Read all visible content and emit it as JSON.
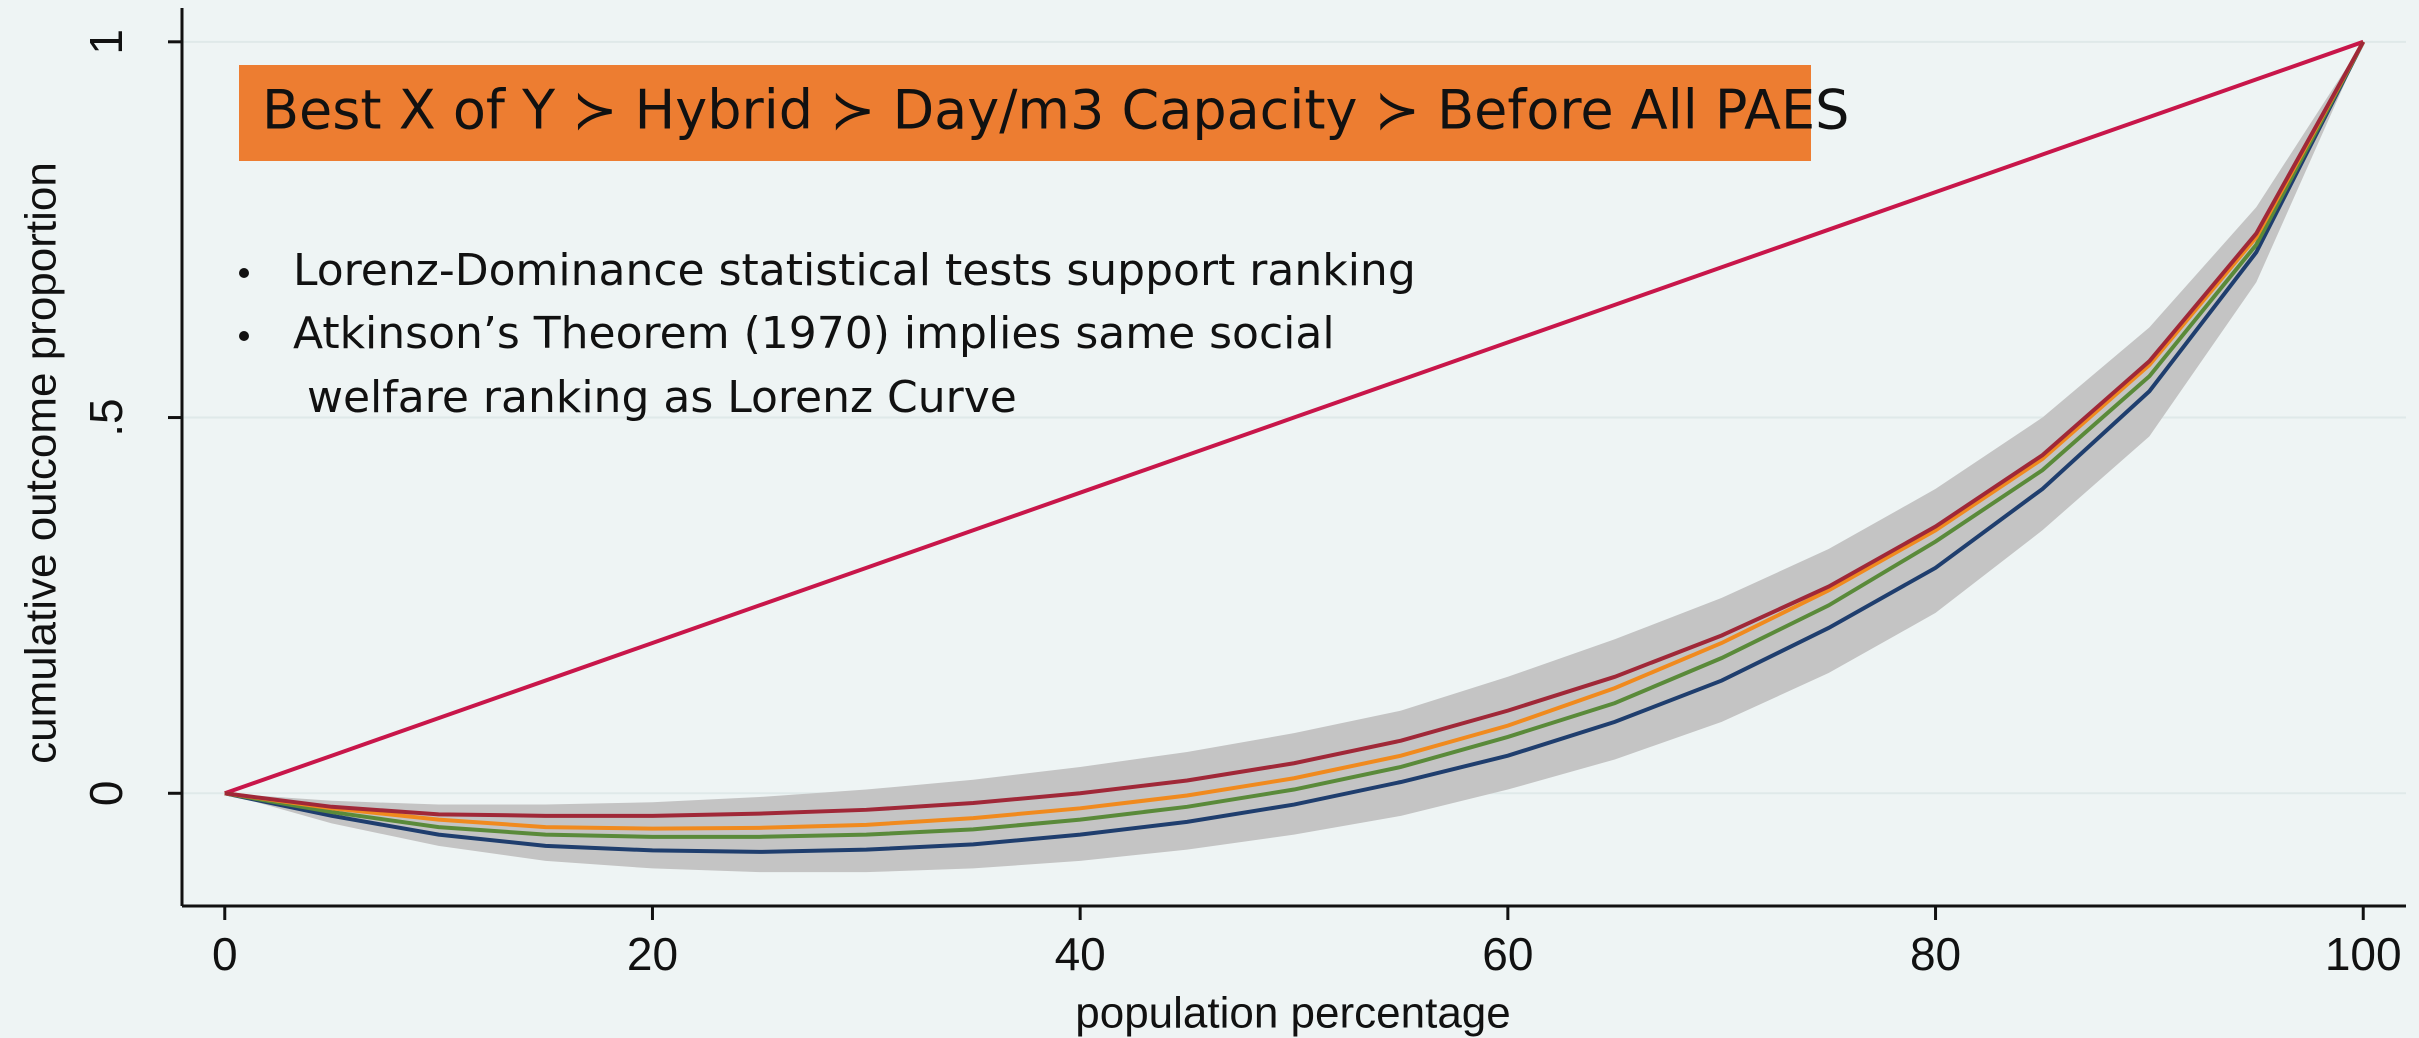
{
  "chart_data": {
    "type": "line",
    "x_label": "population percentage",
    "y_label": "cumulative outcome proportion",
    "annotations": [
      "Best X of Y ≻ Hybrid ≻ Day/m3 Capacity ≻ Before All PAES",
      "Lorenz-Dominance statistical tests support ranking",
      "Atkinson’s Theorem (1970) implies same social",
      "welfare ranking as Lorenz Curve"
    ],
    "x": [
      0,
      5,
      10,
      15,
      20,
      25,
      30,
      35,
      40,
      45,
      50,
      55,
      60,
      65,
      70,
      75,
      80,
      85,
      90,
      95,
      100
    ],
    "xlim": [
      -2,
      102
    ],
    "xticks": [
      0,
      20,
      40,
      60,
      80,
      100
    ],
    "ylim": [
      -0.15,
      1.045
    ],
    "yticks": [
      0,
      {
        "value": 0.5,
        "label": ".5"
      },
      1
    ],
    "grid": true,
    "band": {
      "color": "#c4c4c4",
      "lower": [
        0,
        -0.04,
        -0.07,
        -0.09,
        -0.1,
        -0.105,
        -0.105,
        -0.1,
        -0.09,
        -0.075,
        -0.055,
        -0.03,
        0.005,
        0.045,
        0.095,
        0.16,
        0.24,
        0.35,
        0.475,
        0.68,
        1
      ],
      "upper": [
        0,
        -0.01,
        -0.015,
        -0.015,
        -0.012,
        -0.005,
        0.005,
        0.018,
        0.035,
        0.055,
        0.08,
        0.11,
        0.155,
        0.205,
        0.26,
        0.325,
        0.405,
        0.5,
        0.62,
        0.78,
        1
      ]
    },
    "series": [
      {
        "color": "#c8164a",
        "values": [
          0,
          5,
          10,
          15,
          20,
          25,
          30,
          35,
          40,
          45,
          50,
          55,
          60,
          65,
          70,
          75,
          80,
          85,
          90,
          95,
          100
        ],
        "scale": 0.01
      },
      {
        "color": "#1f3e6e",
        "values": [
          0,
          -0.03,
          -0.055,
          -0.07,
          -0.076,
          -0.078,
          -0.075,
          -0.068,
          -0.055,
          -0.038,
          -0.015,
          0.015,
          0.05,
          0.095,
          0.15,
          0.22,
          0.3,
          0.405,
          0.535,
          0.72,
          1
        ]
      },
      {
        "color": "#5a8a3a",
        "values": [
          0,
          -0.025,
          -0.045,
          -0.055,
          -0.058,
          -0.058,
          -0.055,
          -0.048,
          -0.035,
          -0.018,
          0.005,
          0.035,
          0.075,
          0.12,
          0.18,
          0.25,
          0.335,
          0.43,
          0.555,
          0.73,
          1
        ]
      },
      {
        "color": "#f08a1e",
        "values": [
          0,
          -0.02,
          -0.035,
          -0.045,
          -0.047,
          -0.046,
          -0.042,
          -0.033,
          -0.02,
          -0.003,
          0.02,
          0.05,
          0.09,
          0.14,
          0.2,
          0.27,
          0.35,
          0.445,
          0.57,
          0.74,
          1
        ]
      },
      {
        "color": "#a02838",
        "values": [
          0,
          -0.018,
          -0.028,
          -0.03,
          -0.03,
          -0.027,
          -0.022,
          -0.013,
          0.0,
          0.017,
          0.04,
          0.07,
          0.11,
          0.155,
          0.21,
          0.275,
          0.355,
          0.45,
          0.575,
          0.745,
          1
        ]
      }
    ]
  }
}
